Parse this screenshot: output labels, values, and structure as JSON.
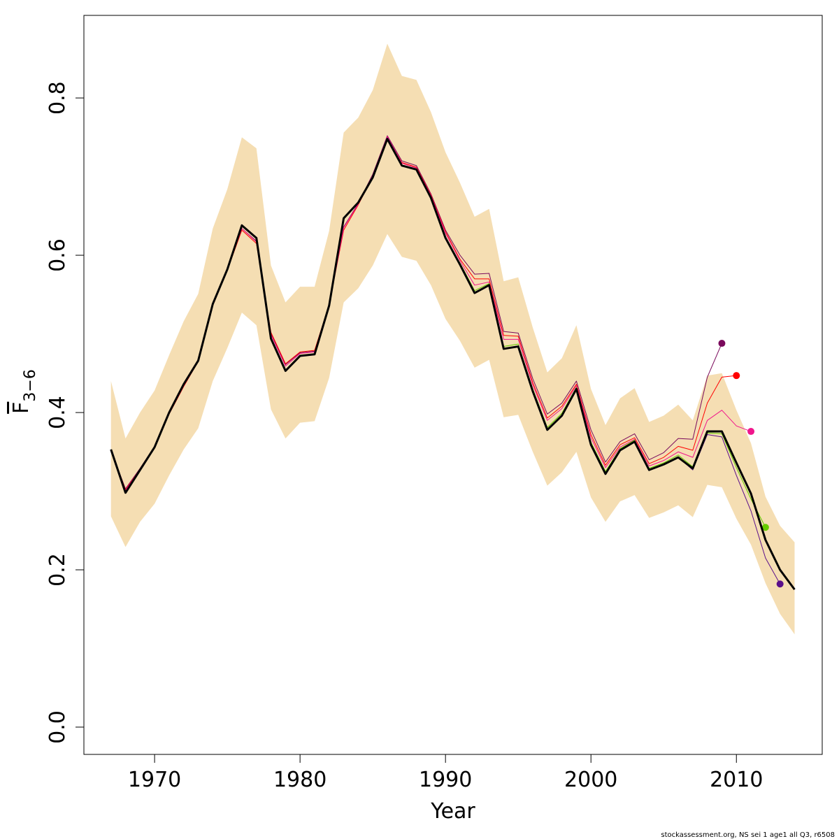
{
  "chart_data": {
    "type": "line",
    "x_label": "Year",
    "y_label": {
      "main": "F",
      "subscript": "3−6"
    },
    "footer": "stockassessment.org, NS sei 1 age1 all Q3, r6508",
    "x": [
      1967,
      1968,
      1969,
      1970,
      1971,
      1972,
      1973,
      1974,
      1975,
      1976,
      1977,
      1978,
      1979,
      1980,
      1981,
      1982,
      1983,
      1984,
      1985,
      1986,
      1987,
      1988,
      1989,
      1990,
      1991,
      1992,
      1993,
      1994,
      1995,
      1996,
      1997,
      1998,
      1999,
      2000,
      2001,
      2002,
      2003,
      2004,
      2005,
      2006,
      2007,
      2008,
      2009,
      2010,
      2011,
      2012,
      2013,
      2014
    ],
    "band": {
      "color": "#f5deb3",
      "upper": [
        0.44,
        0.367,
        0.4,
        0.428,
        0.473,
        0.516,
        0.551,
        0.634,
        0.684,
        0.75,
        0.736,
        0.587,
        0.54,
        0.56,
        0.56,
        0.631,
        0.756,
        0.775,
        0.81,
        0.869,
        0.828,
        0.823,
        0.782,
        0.731,
        0.692,
        0.649,
        0.659,
        0.567,
        0.572,
        0.508,
        0.451,
        0.469,
        0.511,
        0.43,
        0.384,
        0.418,
        0.431,
        0.388,
        0.396,
        0.41,
        0.39,
        0.447,
        0.45,
        0.403,
        0.361,
        0.293,
        0.256,
        0.235
      ],
      "lower": [
        0.268,
        0.229,
        0.261,
        0.284,
        0.32,
        0.353,
        0.38,
        0.44,
        0.482,
        0.527,
        0.511,
        0.404,
        0.367,
        0.387,
        0.389,
        0.444,
        0.54,
        0.558,
        0.587,
        0.627,
        0.598,
        0.593,
        0.562,
        0.519,
        0.491,
        0.457,
        0.467,
        0.394,
        0.397,
        0.35,
        0.307,
        0.324,
        0.35,
        0.292,
        0.261,
        0.287,
        0.295,
        0.266,
        0.273,
        0.282,
        0.267,
        0.308,
        0.305,
        0.265,
        0.232,
        0.183,
        0.144,
        0.118
      ]
    },
    "series": [
      {
        "color": "#7a0a5c",
        "width": 1,
        "end_point": true,
        "values": [
          0.352,
          0.303,
          0.329,
          0.357,
          0.399,
          0.434,
          0.465,
          0.536,
          0.582,
          0.634,
          0.618,
          0.5,
          0.461,
          0.476,
          0.478,
          0.537,
          0.636,
          0.666,
          0.703,
          0.752,
          0.72,
          0.714,
          0.678,
          0.632,
          0.6,
          0.576,
          0.577,
          0.503,
          0.501,
          0.443,
          0.398,
          0.412,
          0.44,
          0.378,
          0.337,
          0.363,
          0.373,
          0.34,
          0.349,
          0.367,
          0.366,
          0.445,
          0.488,
          null,
          null,
          null,
          null,
          null
        ]
      },
      {
        "color": "#ff0000",
        "width": 1,
        "end_point": true,
        "values": [
          0.352,
          0.302,
          0.328,
          0.356,
          0.398,
          0.433,
          0.465,
          0.536,
          0.581,
          0.632,
          0.615,
          0.502,
          0.462,
          0.477,
          0.479,
          0.537,
          0.632,
          0.664,
          0.7,
          0.75,
          0.718,
          0.712,
          0.677,
          0.63,
          0.595,
          0.57,
          0.57,
          0.498,
          0.497,
          0.438,
          0.393,
          0.408,
          0.436,
          0.372,
          0.333,
          0.359,
          0.368,
          0.335,
          0.343,
          0.357,
          0.352,
          0.412,
          0.445,
          0.447,
          null,
          null,
          null,
          null
        ]
      },
      {
        "color": "#f0168c",
        "width": 1,
        "end_point": true,
        "values": [
          0.352,
          0.301,
          0.328,
          0.356,
          0.399,
          0.434,
          0.466,
          0.537,
          0.582,
          0.634,
          0.617,
          0.499,
          0.459,
          0.475,
          0.477,
          0.536,
          0.635,
          0.665,
          0.701,
          0.751,
          0.717,
          0.711,
          0.676,
          0.628,
          0.593,
          0.562,
          0.566,
          0.493,
          0.493,
          0.435,
          0.39,
          0.405,
          0.434,
          0.368,
          0.33,
          0.356,
          0.366,
          0.332,
          0.339,
          0.35,
          0.343,
          0.39,
          0.403,
          0.383,
          0.376,
          null,
          null,
          null
        ]
      },
      {
        "color": "#66cc00",
        "width": 1,
        "end_point": true,
        "values": [
          0.353,
          0.298,
          0.327,
          0.356,
          0.4,
          0.436,
          0.466,
          0.538,
          0.582,
          0.638,
          0.622,
          0.494,
          0.453,
          0.472,
          0.474,
          0.536,
          0.647,
          0.667,
          0.699,
          0.748,
          0.714,
          0.709,
          0.673,
          0.622,
          0.59,
          0.555,
          0.564,
          0.484,
          0.487,
          0.43,
          0.381,
          0.399,
          0.432,
          0.362,
          0.325,
          0.354,
          0.365,
          0.329,
          0.336,
          0.346,
          0.331,
          0.374,
          0.373,
          0.33,
          0.29,
          0.254,
          null,
          null
        ]
      },
      {
        "color": "#5a0f8a",
        "width": 1,
        "end_point": true,
        "values": [
          0.353,
          0.298,
          0.327,
          0.356,
          0.4,
          0.436,
          0.466,
          0.538,
          0.582,
          0.638,
          0.622,
          0.494,
          0.453,
          0.472,
          0.474,
          0.536,
          0.647,
          0.667,
          0.699,
          0.748,
          0.714,
          0.709,
          0.673,
          0.622,
          0.588,
          0.552,
          0.562,
          0.481,
          0.484,
          0.427,
          0.378,
          0.396,
          0.43,
          0.359,
          0.322,
          0.352,
          0.363,
          0.327,
          0.334,
          0.343,
          0.327,
          0.372,
          0.369,
          0.32,
          0.275,
          0.215,
          0.182,
          null
        ]
      },
      {
        "color": "#000000",
        "width": 3,
        "end_point": false,
        "values": [
          0.353,
          0.298,
          0.327,
          0.356,
          0.4,
          0.436,
          0.466,
          0.538,
          0.582,
          0.638,
          0.622,
          0.494,
          0.453,
          0.472,
          0.474,
          0.536,
          0.647,
          0.667,
          0.699,
          0.748,
          0.714,
          0.709,
          0.673,
          0.622,
          0.588,
          0.552,
          0.562,
          0.481,
          0.484,
          0.427,
          0.378,
          0.396,
          0.43,
          0.359,
          0.322,
          0.352,
          0.363,
          0.327,
          0.334,
          0.343,
          0.329,
          0.376,
          0.376,
          0.336,
          0.297,
          0.238,
          0.2,
          0.175
        ]
      }
    ],
    "xlim": [
      1965.14,
      2015.9
    ],
    "ylim": [
      -0.0347,
      0.905
    ],
    "xticks": [
      1970,
      1980,
      1990,
      2000,
      2010
    ],
    "yticks": [
      {
        "value": 0,
        "label": "0.0"
      },
      0.2,
      0.4,
      0.6,
      0.8
    ],
    "grid": false
  }
}
